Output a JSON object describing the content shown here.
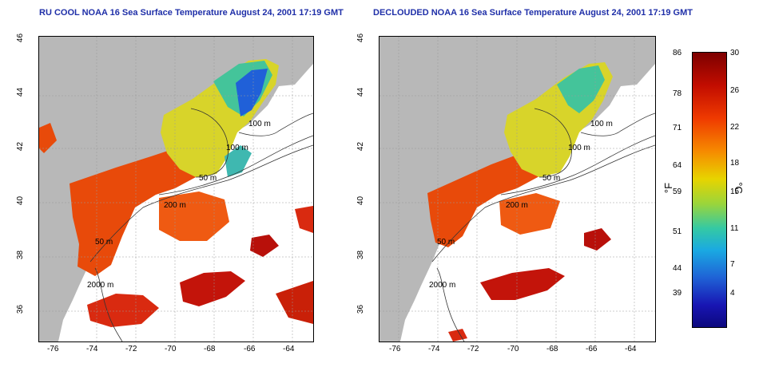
{
  "titles": {
    "left": "RU COOL NOAA 16 Sea Surface Temperature August 24, 2001 17:19 GMT",
    "right": "DECLOUDED NOAA 16 Sea Surface Temperature August 24, 2001 17:19 GMT"
  },
  "axes": {
    "lon_ticks": [
      "-76",
      "-74",
      "-72",
      "-70",
      "-68",
      "-66",
      "-64"
    ],
    "lat_ticks": [
      "46",
      "44",
      "42",
      "40",
      "38",
      "36"
    ]
  },
  "contours": {
    "left": [
      "100 m",
      "100 m",
      "50 m",
      "200 m",
      "50 m",
      "2000 m"
    ],
    "right": [
      "100 m",
      "100 m",
      "50 m",
      "200 m",
      "50 m",
      "2000 m"
    ]
  },
  "colorbar": {
    "f_labels": [
      "86",
      "78",
      "71",
      "64",
      "59",
      "51",
      "44",
      "39"
    ],
    "c_labels": [
      "30",
      "26",
      "22",
      "18",
      "15",
      "11",
      "7",
      "4"
    ],
    "f_unit": "°F",
    "c_unit": "°C"
  },
  "colors": {
    "land": "#b8b8b8",
    "title": "#1f2fa8",
    "warm": "#e84a0a",
    "hot": "#c3140a",
    "mid": "#e6d428",
    "cool": "#44c49a",
    "cold": "#2060d8"
  }
}
